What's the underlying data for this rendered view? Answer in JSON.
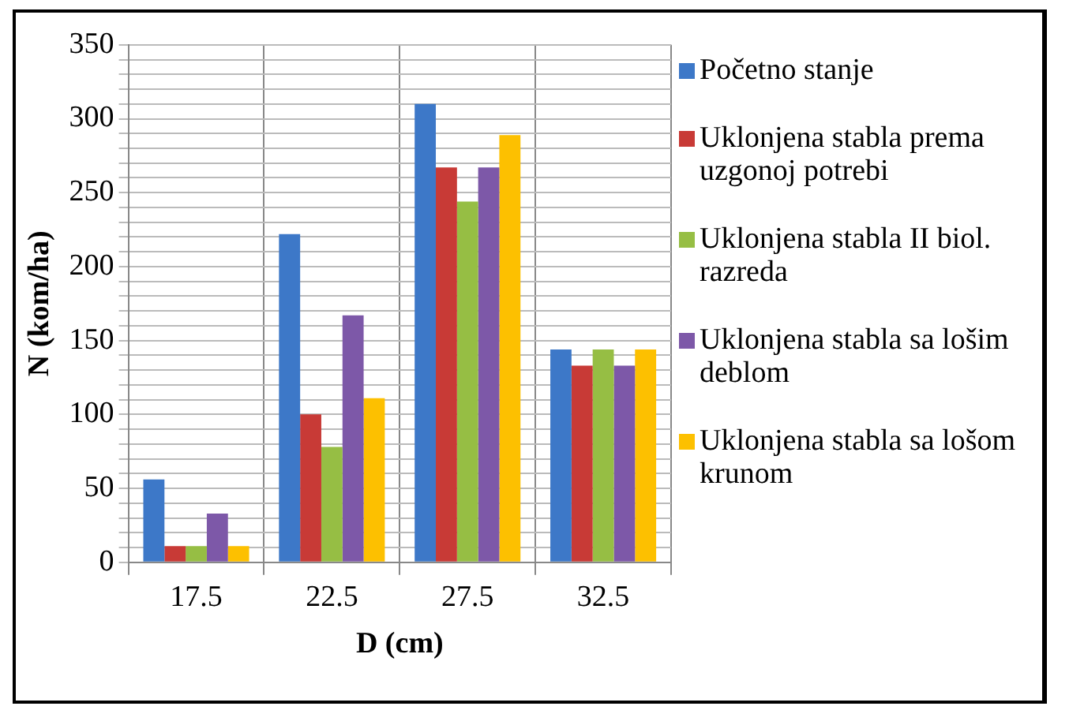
{
  "chart_data": {
    "type": "bar",
    "xlabel": "D (cm)",
    "ylabel": "N (kom/ha)",
    "categories": [
      "17.5",
      "22.5",
      "27.5",
      "32.5"
    ],
    "series": [
      {
        "name": "Početno stanje",
        "color": "#3d78c8",
        "values": [
          56,
          222,
          310,
          144
        ]
      },
      {
        "name": "Uklonjena stabla prema uzgonoj potrebi",
        "color": "#c83a36",
        "values": [
          11,
          100,
          267,
          133
        ]
      },
      {
        "name": "Uklonjena stabla II biol. razreda",
        "color": "#96be44",
        "values": [
          11,
          78,
          244,
          144
        ]
      },
      {
        "name": "Uklonjena stabla sa lošim deblom",
        "color": "#7d58a8",
        "values": [
          33,
          167,
          267,
          133
        ]
      },
      {
        "name": "Uklonjena stabla sa lošom krunom",
        "color": "#fdc000",
        "values": [
          11,
          111,
          289,
          144
        ]
      }
    ],
    "ylim": [
      0,
      350
    ],
    "yticks": [
      0,
      {
        "value": 10,
        "label": null
      },
      {
        "value": 20,
        "label": null
      },
      {
        "value": 30,
        "label": null
      },
      {
        "value": 40,
        "label": null
      },
      50,
      {
        "value": 60,
        "label": null
      },
      {
        "value": 70,
        "label": null
      },
      {
        "value": 80,
        "label": null
      },
      {
        "value": 90,
        "label": null
      },
      100,
      {
        "value": 110,
        "label": null
      },
      {
        "value": 120,
        "label": null
      },
      {
        "value": 130,
        "label": null
      },
      {
        "value": 140,
        "label": null
      },
      150,
      {
        "value": 160,
        "label": null
      },
      {
        "value": 170,
        "label": null
      },
      {
        "value": 180,
        "label": null
      },
      {
        "value": 190,
        "label": null
      },
      200,
      {
        "value": 210,
        "label": null
      },
      {
        "value": 220,
        "label": null
      },
      {
        "value": 230,
        "label": null
      },
      {
        "value": 240,
        "label": null
      },
      250,
      {
        "value": 260,
        "label": null
      },
      {
        "value": 270,
        "label": null
      },
      {
        "value": 280,
        "label": null
      },
      {
        "value": 290,
        "label": null
      },
      300,
      {
        "value": 310,
        "label": null
      },
      {
        "value": 320,
        "label": null
      },
      {
        "value": 330,
        "label": null
      },
      {
        "value": 340,
        "label": null
      },
      350
    ],
    "grid": true,
    "legend": "right"
  }
}
